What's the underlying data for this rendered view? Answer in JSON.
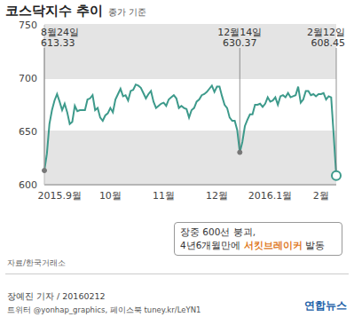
{
  "chart_data": {
    "type": "line",
    "title": "코스닥지수 추이",
    "subtitle": "종가 기준",
    "color": "#3d9a8b",
    "grid": true,
    "ylim": [
      600,
      750
    ],
    "yticks": [
      600,
      650,
      700,
      750
    ],
    "categories": [
      null,
      null,
      null,
      null,
      null,
      null,
      "2015.9월",
      null,
      null,
      null,
      null,
      null,
      null,
      null,
      null,
      null,
      null,
      null,
      null,
      null,
      null,
      null,
      null,
      null,
      null,
      null,
      "10월",
      null,
      null,
      null,
      null,
      null,
      null,
      null,
      null,
      null,
      null,
      null,
      null,
      null,
      null,
      null,
      null,
      null,
      null,
      null,
      null,
      "11월",
      null,
      null,
      null,
      null,
      null,
      null,
      null,
      null,
      null,
      null,
      null,
      null,
      null,
      null,
      null,
      null,
      null,
      null,
      null,
      null,
      "12월",
      null,
      null,
      null,
      null,
      null,
      null,
      null,
      null,
      null,
      null,
      null,
      null,
      null,
      null,
      null,
      null,
      null,
      null,
      null,
      null,
      "2016.1월",
      null,
      null,
      null,
      null,
      null,
      null,
      null,
      null,
      null,
      null,
      null,
      null,
      null,
      null,
      null,
      null,
      null,
      null,
      null,
      "2월",
      null,
      null,
      null,
      null,
      null,
      null
    ],
    "values": [
      613.33,
      629,
      657,
      670,
      679,
      685,
      678,
      670,
      676,
      668,
      657,
      659,
      674,
      669,
      670,
      670,
      670,
      680,
      681,
      684,
      670,
      672,
      663,
      660,
      665,
      667,
      672,
      668,
      680,
      685,
      690,
      683,
      684,
      679,
      688,
      689,
      694,
      693,
      691,
      686,
      681,
      685,
      688,
      678,
      672,
      674,
      676,
      677,
      674,
      680,
      682,
      684,
      681,
      672,
      674,
      672,
      671,
      663,
      670,
      672,
      678,
      680,
      684,
      685,
      687,
      690,
      693,
      687,
      692,
      692,
      683,
      675,
      672,
      663,
      660,
      660,
      651,
      630.37,
      640,
      655,
      661,
      666,
      666,
      675,
      675,
      676,
      673,
      676,
      682,
      678,
      679,
      682,
      675,
      683,
      684,
      682,
      686,
      682,
      683,
      684,
      692,
      677,
      680,
      688,
      688,
      684,
      685,
      683,
      685,
      685,
      686,
      680,
      683,
      682,
      646,
      608.45
    ],
    "annotations": [
      {
        "date": "8월24일",
        "value": 613.33
      },
      {
        "date": "12월14일",
        "value": 630.37
      },
      {
        "date": "2월12일",
        "value": 608.45
      }
    ],
    "callout": {
      "line1": "장중 600선 붕괴,",
      "line2_before": "4년6개월만에 ",
      "line2_highlight": "서킷브레이커",
      "line2_after": " 발동"
    },
    "source": "자료/한국거래소",
    "credit": "장예진 기자 / 20160212",
    "sns": "트위터 @yonhap_graphics, 페이스북 tuney.kr/LeYN1",
    "logo": "연합뉴스"
  }
}
